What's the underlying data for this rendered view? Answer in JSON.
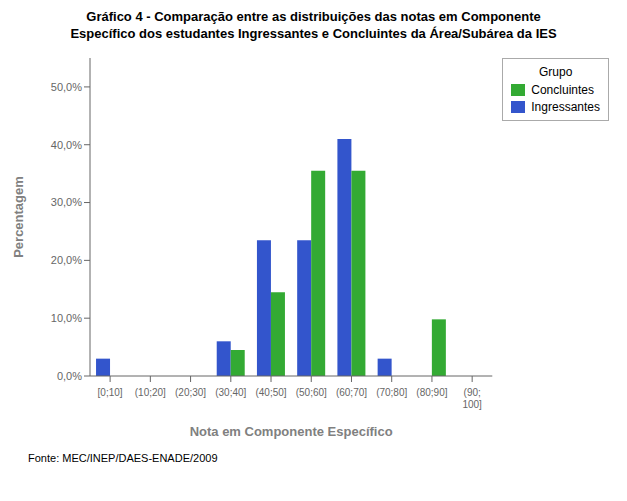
{
  "chart_data": {
    "type": "bar",
    "title": "Gráfico 4 - Comparação entre as distribuições das notas em Componente\nEspecífico dos estudantes Ingressantes e Concluintes da Área/Subárea da IES",
    "xlabel": "Nota em Componente Específico",
    "ylabel": "Percentagem",
    "annotations": [
      "Fonte: MEC/INEP/DAES-ENADE/2009"
    ],
    "categories": [
      "[0;10]",
      "(10;20]",
      "(20;30]",
      "(30;40]",
      "(40;50]",
      "(50;60]",
      "(60;70]",
      "(70;80]",
      "(80;90]",
      "(90;\n100]"
    ],
    "series": [
      {
        "name": "Ingressantes",
        "color": "#3355CC",
        "values": [
          3.0,
          0.0,
          0.0,
          6.0,
          23.5,
          23.5,
          41.0,
          3.0,
          0.0,
          0.0
        ]
      },
      {
        "name": "Concluintes",
        "color": "#33AA33",
        "values": [
          0.0,
          0.0,
          0.0,
          4.5,
          14.5,
          35.5,
          35.5,
          0.0,
          9.8,
          0.0
        ]
      }
    ],
    "ylim": [
      0,
      55
    ],
    "yticks": [
      {
        "value": 0.0,
        "label": "0,0%"
      },
      {
        "value": 10.0,
        "label": "10,0%"
      },
      {
        "value": 20.0,
        "label": "20,0%"
      },
      {
        "value": 30.0,
        "label": "30,0%"
      },
      {
        "value": 40.0,
        "label": "40,0%"
      },
      {
        "value": 50.0,
        "label": "50,0%"
      }
    ],
    "legend_title": "Grupo",
    "legend": "right",
    "grid": false
  }
}
